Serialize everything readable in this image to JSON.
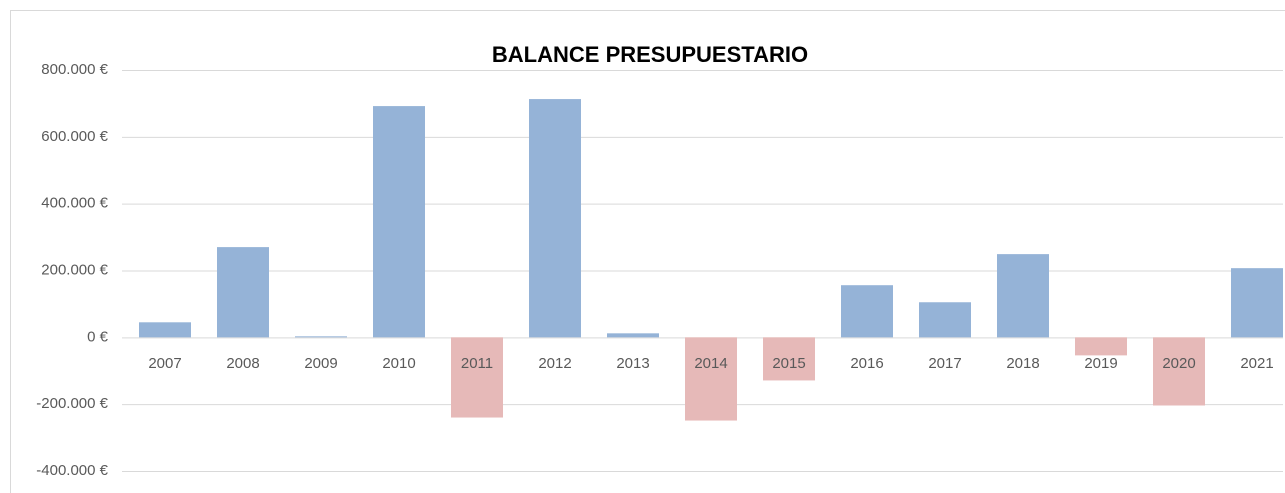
{
  "chart_data": {
    "type": "bar",
    "title": "BALANCE PRESUPUESTARIO",
    "categories": [
      "2007",
      "2008",
      "2009",
      "2010",
      "2011",
      "2012",
      "2013",
      "2014",
      "2015",
      "2016",
      "2017",
      "2018",
      "2019",
      "2020",
      "2021"
    ],
    "values": [
      45000,
      270000,
      3000,
      692000,
      -240000,
      713000,
      12000,
      -249000,
      -129000,
      156000,
      105000,
      249000,
      -54000,
      -204000,
      207000
    ],
    "color": "#95b3d7",
    "negative_color": "#e6b9b8",
    "ylim": [
      -400000,
      800000
    ],
    "yticks": [
      {
        "value": -400000,
        "label": "-400.000 €"
      },
      {
        "value": -200000,
        "label": "-200.000 €"
      },
      {
        "value": 0,
        "label": "0 €"
      },
      {
        "value": 200000,
        "label": "200.000 €"
      },
      {
        "value": 400000,
        "label": "400.000 €"
      },
      {
        "value": 600000,
        "label": "600.000 €"
      },
      {
        "value": 800000,
        "label": "800.000 €"
      }
    ],
    "grid": true
  }
}
